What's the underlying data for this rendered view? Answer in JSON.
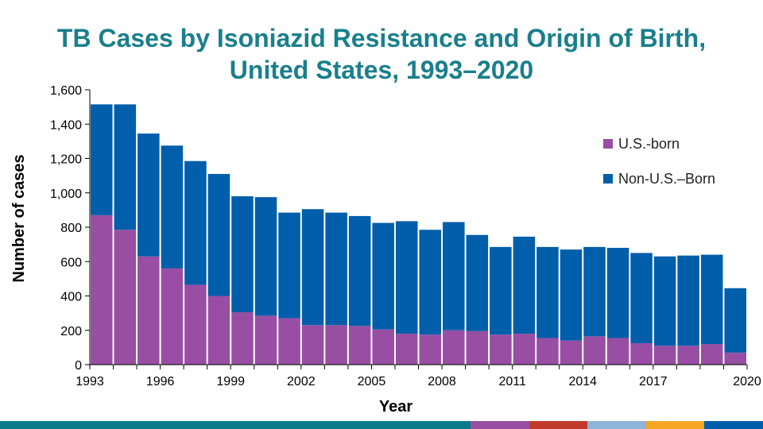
{
  "chart_data": {
    "type": "bar",
    "stacked": true,
    "title_line1": "TB Cases by Isoniazid Resistance and Origin of Birth,",
    "title_line2": "United States, 1993–2020",
    "xlabel": "Year",
    "ylabel": "Number of cases",
    "ylim": [
      0,
      1600
    ],
    "yticks": [
      "0",
      "200",
      "400",
      "600",
      "800",
      "1,000",
      "1,200",
      "1,400",
      "1,600"
    ],
    "ytick_values": [
      0,
      200,
      400,
      600,
      800,
      1000,
      1200,
      1400,
      1600
    ],
    "categories": [
      1993,
      1994,
      1995,
      1996,
      1997,
      1998,
      1999,
      2000,
      2001,
      2002,
      2003,
      2004,
      2005,
      2006,
      2007,
      2008,
      2009,
      2010,
      2011,
      2012,
      2013,
      2014,
      2015,
      2016,
      2017,
      2018,
      2019,
      2020
    ],
    "xtick_labels": [
      "1993",
      "1996",
      "1999",
      "2002",
      "2005",
      "2008",
      "2011",
      "2014",
      "2017",
      "2020"
    ],
    "series": [
      {
        "name": "U.S.-born",
        "color": "#984ea3",
        "values": [
          870,
          785,
          630,
          560,
          465,
          400,
          305,
          285,
          270,
          230,
          230,
          225,
          205,
          180,
          175,
          200,
          195,
          175,
          180,
          155,
          140,
          165,
          155,
          125,
          110,
          110,
          120,
          70
        ]
      },
      {
        "name": "Non-U.S.–Born",
        "color": "#005eaa",
        "values": [
          645,
          730,
          715,
          715,
          720,
          710,
          675,
          690,
          615,
          675,
          655,
          640,
          620,
          655,
          610,
          630,
          560,
          510,
          565,
          530,
          530,
          520,
          525,
          525,
          520,
          525,
          520,
          375
        ]
      }
    ],
    "legend_position": "top-right",
    "grid": false
  },
  "footer_colors": [
    "#0b7a8a",
    "#984ea3",
    "#c03a2b",
    "#8fb4d9",
    "#f5a623",
    "#005eaa"
  ]
}
